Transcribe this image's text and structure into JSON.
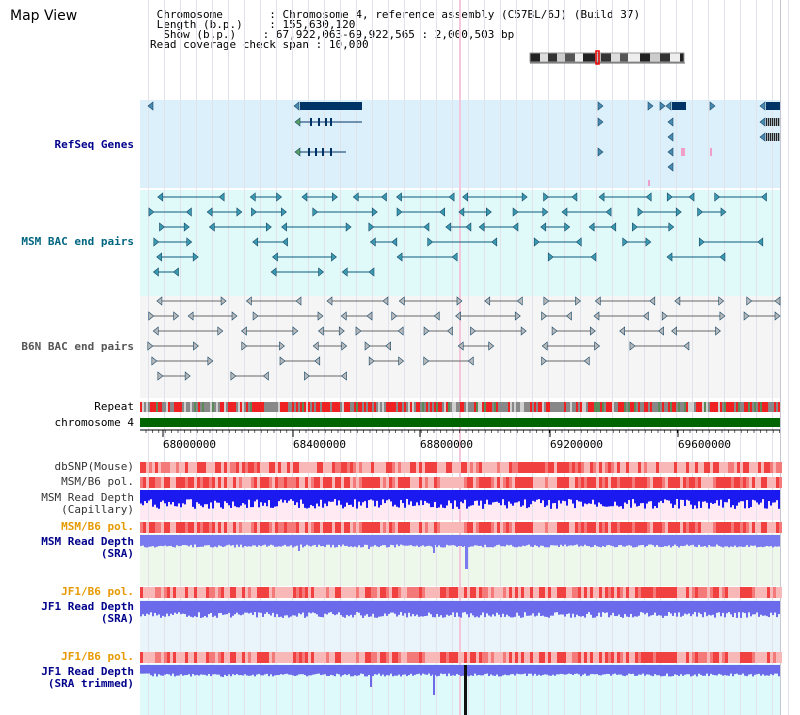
{
  "title": "Map View",
  "info": [
    {
      "key": "Chromosome",
      "pad": "      ",
      "value": "Chromosome 4, reference assembly (C57BL/6J) (Build 37)",
      "indent": " "
    },
    {
      "key": "Length (b.p.)",
      "pad": "   ",
      "value": "155,630,120",
      "indent": " "
    },
    {
      "key": "Show (b.p.)",
      "pad": "   ",
      "value": "67,922,063-69,922,565 : 2,000,503 bp",
      "indent": "  "
    },
    {
      "key": "Read coverage check span",
      "pad": "",
      "value": "10,000",
      "indent": ""
    }
  ],
  "tracks": {
    "refseq": {
      "label": "RefSeq Genes",
      "color": "#00008b",
      "bg": "#dcf0fb"
    },
    "msm_bac": {
      "label": "MSM BAC end pairs",
      "color": "#006680",
      "bg": "#e0fafa"
    },
    "b6n_bac": {
      "label": "B6N BAC end pairs",
      "color": "#555555",
      "bg": "#f5f5f5"
    },
    "repeat": {
      "label": "Repeat",
      "color": "#000000"
    },
    "chromosome": {
      "label": "chromosome 4",
      "color": "#000000",
      "bar": "#006400"
    },
    "dbsnp": {
      "label": "dbSNP(Mouse)",
      "color": "#333333"
    },
    "msm_b6_pol": {
      "label": "MSM/B6 pol.",
      "color": "#333333"
    },
    "msm_depth_cap": {
      "label1": "MSM Read Depth",
      "label2": "(Capillary)",
      "color": "#333333",
      "bar": "#1a1af0",
      "bg": "#ffeaf4"
    },
    "msm_b6_pol2": {
      "label": "MSM/B6 pol.",
      "color": "#e69900"
    },
    "msm_depth_sra": {
      "label1": "MSM Read Depth",
      "label2": "(SRA)",
      "color": "#00008b",
      "bar": "#7a7af0",
      "bg": "#eef8ea"
    },
    "jf1_b6_pol": {
      "label": "JF1/B6 pol.",
      "color": "#e69900"
    },
    "jf1_depth_sra": {
      "label1": "JF1 Read Depth",
      "label2": "(SRA)",
      "color": "#00008b",
      "bar": "#6a6aea",
      "bg": "#eaf4fb"
    },
    "jf1_b6_pol2": {
      "label": "JF1/B6 pol.",
      "color": "#e69900"
    },
    "jf1_depth_trim": {
      "label1": "JF1 Read Depth",
      "label2": "(SRA trimmed)",
      "color": "#00008b",
      "bar": "#6a6aea",
      "bg": "#dffafa"
    }
  },
  "ruler": {
    "ticks": [
      "68000000",
      "68400000",
      "68800000",
      "69200000",
      "69600000"
    ]
  },
  "colors": {
    "genes": "#003366",
    "repeat_red": "#ee2222",
    "repeat_grey": "#888888",
    "pol_red": "#f04040",
    "pol_pink": "#f8b8b8"
  }
}
